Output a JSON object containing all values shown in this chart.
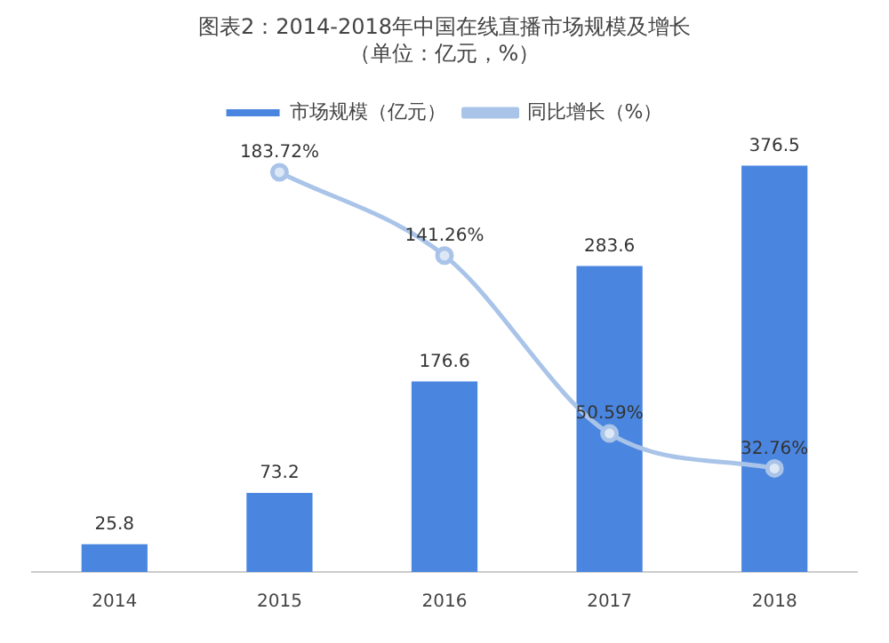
{
  "chart_data": {
    "type": "bar",
    "title": "图表2：2014-2018年中国在线直播市场规模及增长（单位：亿元，%）",
    "categories": [
      "2014",
      "2015",
      "2016",
      "2017",
      "2018"
    ],
    "series": [
      {
        "name": "市场规模（亿元）",
        "color": "#4a86e0",
        "values": [
          25.8,
          73.2,
          176.6,
          283.6,
          376.5
        ],
        "value_labels": [
          "25.8",
          "73.2",
          "176.6",
          "283.6",
          "376.5"
        ]
      },
      {
        "name": "同比增长（%）",
        "type": "line",
        "axis": "y2",
        "color": "#a9c4e8",
        "values": [
          null,
          183.72,
          141.26,
          50.59,
          32.76
        ],
        "value_labels": [
          null,
          "183.72%",
          "141.26%",
          "50.59%",
          "32.76%"
        ]
      }
    ],
    "tick_labels": "x",
    "grid": false,
    "legend": "top",
    "marker": "circle"
  }
}
